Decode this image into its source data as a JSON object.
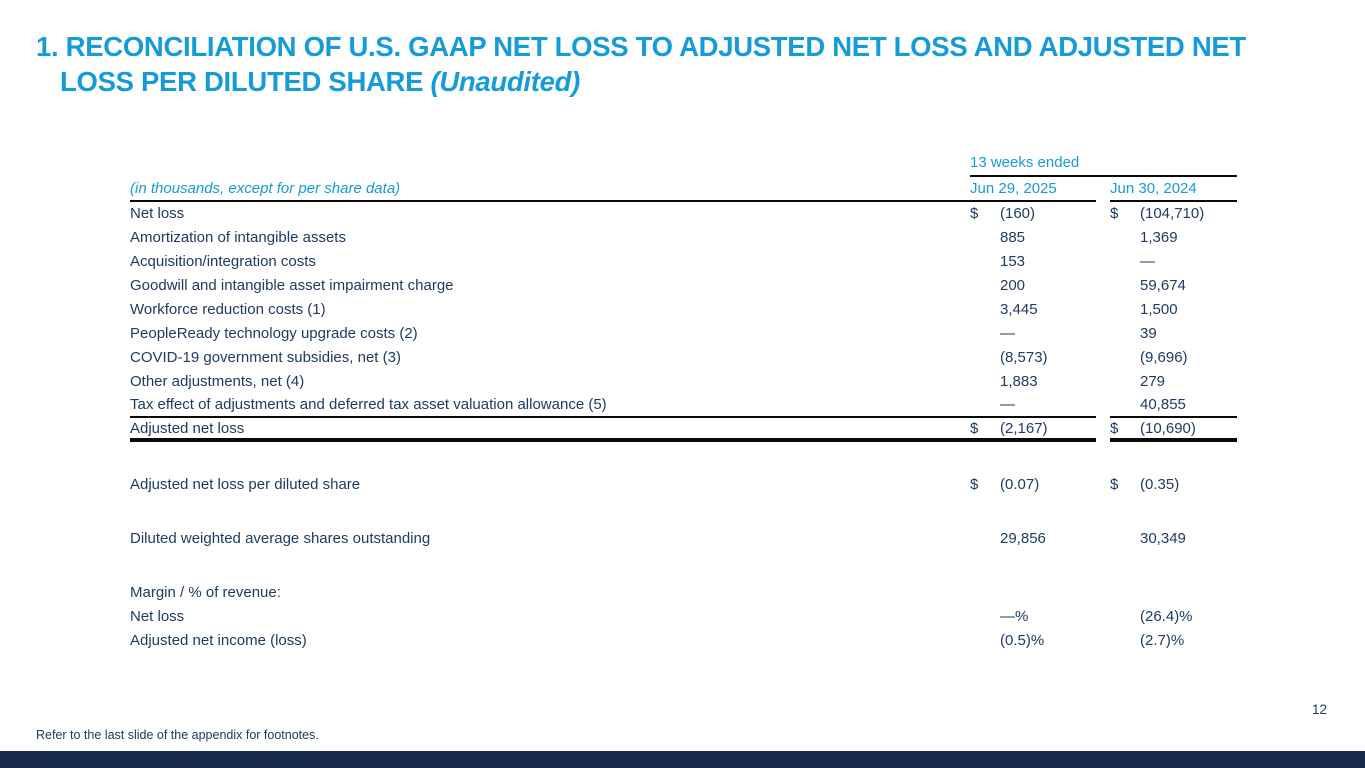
{
  "slide": {
    "title_line1": "1. RECONCILIATION OF U.S. GAAP NET LOSS TO ADJUSTED NET LOSS AND ADJUSTED NET",
    "title_line2": "LOSS PER DILUTED SHARE",
    "title_unaudited": "(Unaudited)",
    "footnote": "Refer to the last slide of the appendix for footnotes.",
    "page_number": "12"
  },
  "colors": {
    "accent_cyan": "#159BD8",
    "text_navy": "#1F3A63",
    "bottom_bar_navy": "#182A4E",
    "rule_black": "#0A0A0A"
  },
  "table": {
    "period_header": "13 weeks ended",
    "caption": "(in thousands, except for per share data)",
    "col1_header": "Jun 29, 2025",
    "col2_header": "Jun 30, 2024",
    "rows": [
      {
        "label": "Net loss",
        "d1": "$",
        "v1": "(160)",
        "d2": "$",
        "v2": "(104,710)"
      },
      {
        "label": "Amortization of intangible assets",
        "d1": "",
        "v1": "885",
        "d2": "",
        "v2": "1,369"
      },
      {
        "label": "Acquisition/integration costs",
        "d1": "",
        "v1": "153",
        "d2": "",
        "v2": "—"
      },
      {
        "label": "Goodwill and intangible asset impairment charge",
        "d1": "",
        "v1": "200",
        "d2": "",
        "v2": "59,674"
      },
      {
        "label": "Workforce reduction costs (1)",
        "d1": "",
        "v1": "3,445",
        "d2": "",
        "v2": "1,500"
      },
      {
        "label": "PeopleReady technology upgrade costs (2)",
        "d1": "",
        "v1": "—",
        "d2": "",
        "v2": "39"
      },
      {
        "label": "COVID-19 government subsidies, net (3)",
        "d1": "",
        "v1": "(8,573)",
        "d2": "",
        "v2": "(9,696)"
      },
      {
        "label": "Other adjustments, net (4)",
        "d1": "",
        "v1": "1,883",
        "d2": "",
        "v2": "279"
      },
      {
        "label": "Tax effect of adjustments and deferred tax asset valuation allowance (5)",
        "d1": "",
        "v1": "—",
        "d2": "",
        "v2": "40,855"
      }
    ],
    "total_row": {
      "label": "Adjusted net loss",
      "d1": "$",
      "v1": "(2,167)",
      "d2": "$",
      "v2": "(10,690)"
    },
    "per_share_row": {
      "label": "Adjusted net loss per diluted share",
      "d1": "$",
      "v1": "(0.07)",
      "d2": "$",
      "v2": "(0.35)"
    },
    "shares_row": {
      "label": "Diluted weighted average shares outstanding",
      "v1": "29,856",
      "v2": "30,349"
    },
    "margin_section": {
      "header": "Margin / % of revenue:",
      "rows": [
        {
          "label": "Net loss",
          "v1": "—%",
          "v2": "(26.4)%"
        },
        {
          "label": "Adjusted net income (loss)",
          "v1": "(0.5)%",
          "v2": "(2.7)%"
        }
      ]
    }
  }
}
